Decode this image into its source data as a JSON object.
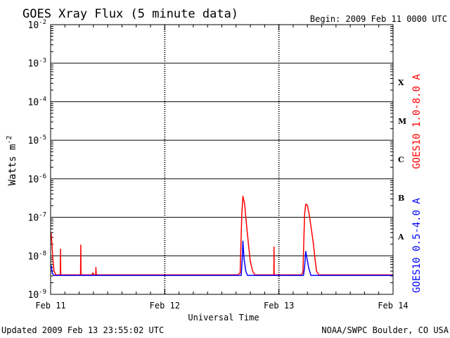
{
  "chart_data": {
    "type": "line",
    "title": "GOES Xray Flux (5 minute data)",
    "begin_text": "Begin:  2009 Feb 11 0000 UTC",
    "xlabel": "Universal Time",
    "ylabel_main": "Watts m",
    "ylabel_sup": "-2",
    "yscale": "log",
    "ylim_exp": [
      -9,
      -2
    ],
    "y_tick_labels": [
      {
        "base": "10",
        "exp": "-9",
        "value_exp": -9
      },
      {
        "base": "10",
        "exp": "-8",
        "value_exp": -8
      },
      {
        "base": "10",
        "exp": "-7",
        "value_exp": -7
      },
      {
        "base": "10",
        "exp": "-6",
        "value_exp": -6
      },
      {
        "base": "10",
        "exp": "-5",
        "value_exp": -5
      },
      {
        "base": "10",
        "exp": "-4",
        "value_exp": -4
      },
      {
        "base": "10",
        "exp": "-3",
        "value_exp": -3
      },
      {
        "base": "10",
        "exp": "-2",
        "value_exp": -2
      }
    ],
    "xlim_days": [
      0,
      3
    ],
    "x_tick_labels": [
      {
        "label": "Feb 11",
        "day": 0
      },
      {
        "label": "Feb 12",
        "day": 1
      },
      {
        "label": "Feb 13",
        "day": 2
      },
      {
        "label": "Feb 14",
        "day": 3
      }
    ],
    "flare_classes": [
      {
        "label": "A",
        "value_exp": -7.5
      },
      {
        "label": "B",
        "value_exp": -6.5
      },
      {
        "label": "C",
        "value_exp": -5.5
      },
      {
        "label": "M",
        "value_exp": -4.5
      },
      {
        "label": "X",
        "value_exp": -3.5
      }
    ],
    "series": [
      {
        "name": "GOES10 1.0-8.0 A",
        "color": "#ff0000",
        "points": [
          [
            0.0,
            3.5e-08
          ],
          [
            0.005,
            3.8e-08
          ],
          [
            0.012,
            2e-08
          ],
          [
            0.02,
            8e-09
          ],
          [
            0.03,
            4e-09
          ],
          [
            0.045,
            3.2e-09
          ],
          [
            0.085,
            3.2e-09
          ],
          [
            0.087,
            1.5e-08
          ],
          [
            0.089,
            3.2e-09
          ],
          [
            0.262,
            3.2e-09
          ],
          [
            0.264,
            1.9e-08
          ],
          [
            0.266,
            3.2e-09
          ],
          [
            0.36,
            3.2e-09
          ],
          [
            0.37,
            3.6e-09
          ],
          [
            0.38,
            3.2e-09
          ],
          [
            0.395,
            3.2e-09
          ],
          [
            0.397,
            5e-09
          ],
          [
            0.4,
            3.2e-09
          ],
          [
            1.64,
            3.2e-09
          ],
          [
            1.66,
            3.6e-09
          ],
          [
            1.675,
            1.2e-07
          ],
          [
            1.685,
            3.5e-07
          ],
          [
            1.7,
            2.2e-07
          ],
          [
            1.71,
            1e-07
          ],
          [
            1.72,
            5e-08
          ],
          [
            1.735,
            1.8e-08
          ],
          [
            1.75,
            7e-09
          ],
          [
            1.77,
            4e-09
          ],
          [
            1.79,
            3.2e-09
          ],
          [
            1.955,
            3.2e-09
          ],
          [
            1.957,
            1.7e-08
          ],
          [
            1.959,
            3.2e-09
          ],
          [
            2.19,
            3.2e-09
          ],
          [
            2.21,
            3.6e-09
          ],
          [
            2.225,
            1.2e-07
          ],
          [
            2.235,
            2.2e-07
          ],
          [
            2.25,
            2e-07
          ],
          [
            2.265,
            1.2e-07
          ],
          [
            2.28,
            6e-08
          ],
          [
            2.3,
            2.3e-08
          ],
          [
            2.315,
            9e-09
          ],
          [
            2.33,
            4e-09
          ],
          [
            2.35,
            3.2e-09
          ],
          [
            3.0,
            3.2e-09
          ]
        ]
      },
      {
        "name": "GOES10 0.5-4.0 A",
        "color": "#0000ff",
        "points": [
          [
            0.0,
            5e-09
          ],
          [
            0.006,
            5.5e-09
          ],
          [
            0.015,
            3.5e-09
          ],
          [
            0.03,
            3.1e-09
          ],
          [
            1.67,
            3.1e-09
          ],
          [
            1.68,
            1e-08
          ],
          [
            1.685,
            2.4e-08
          ],
          [
            1.695,
            8e-09
          ],
          [
            1.71,
            4e-09
          ],
          [
            1.725,
            3.1e-09
          ],
          [
            2.215,
            3.1e-09
          ],
          [
            2.225,
            5e-09
          ],
          [
            2.235,
            1.3e-08
          ],
          [
            2.245,
            9e-09
          ],
          [
            2.26,
            5e-09
          ],
          [
            2.28,
            3.1e-09
          ],
          [
            3.0,
            3.1e-09
          ]
        ]
      }
    ],
    "legend_placement": "right, vertical",
    "grid": "horizontal lines at each decade from 1e-8 to 1e-3",
    "footer_left": "Updated 2009 Feb 13 23:55:02 UTC",
    "footer_right": "NOAA/SWPC Boulder, CO USA"
  }
}
